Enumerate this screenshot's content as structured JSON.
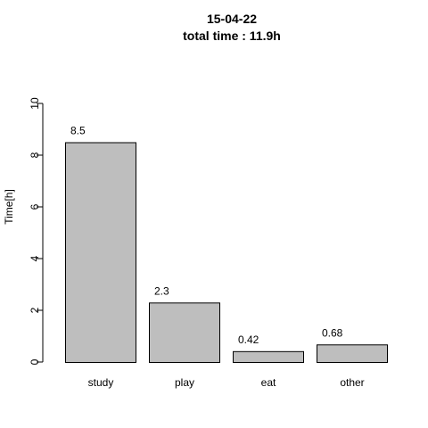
{
  "chart_data": {
    "type": "bar",
    "title": "15-04-22",
    "subtitle": "total time : 11.9h",
    "xlabel": "",
    "ylabel": "Time[h]",
    "ylim": [
      0,
      10
    ],
    "yticks": [
      0,
      2,
      4,
      6,
      8,
      10
    ],
    "categories": [
      "study",
      "play",
      "eat",
      "other"
    ],
    "values": [
      8.5,
      2.3,
      0.42,
      0.68
    ],
    "value_labels": [
      "8.5",
      "2.3",
      "0.42",
      "0.68"
    ],
    "bar_fill": "#bebebe",
    "bar_stroke": "#000000",
    "grid": false,
    "legend": "none"
  }
}
